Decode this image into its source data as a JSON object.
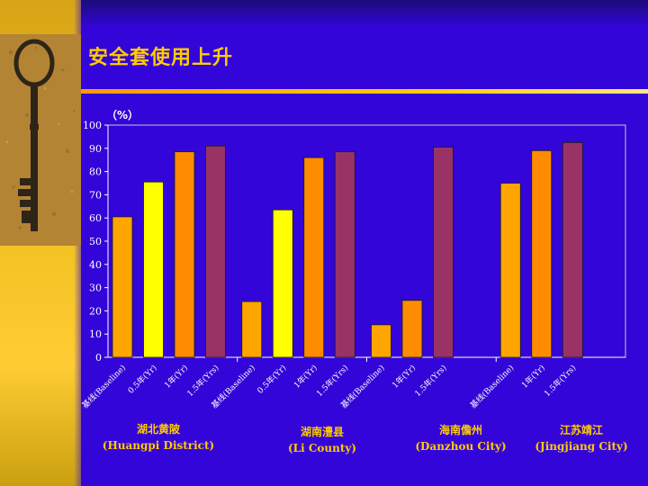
{
  "slide": {
    "title": "安全套使用上升"
  },
  "chart_data": {
    "type": "bar",
    "unit_label": "（%）",
    "ylim": [
      0,
      100
    ],
    "yticks": [
      0,
      10,
      20,
      30,
      40,
      50,
      60,
      70,
      80,
      90,
      100
    ],
    "grid": false,
    "legend": "none",
    "groups": [
      {
        "name_cn": "湖北黄陂",
        "name_en": "(Huangpi District)",
        "bars": [
          {
            "label": "基线(Baseline)",
            "value": 60.5,
            "color": "#ffa500"
          },
          {
            "label": "0.5年(Yr)",
            "value": 75.5,
            "color": "#ffff00"
          },
          {
            "label": "1年(Yr)",
            "value": 88.5,
            "color": "#ff8c00"
          },
          {
            "label": "1.5年(Yrs)",
            "value": 91.0,
            "color": "#993366"
          }
        ]
      },
      {
        "name_cn": "湖南澧县",
        "name_en": "(Li County)",
        "bars": [
          {
            "label": "基线(Baseline)",
            "value": 24.0,
            "color": "#ffa500"
          },
          {
            "label": "0.5年(Yr)",
            "value": 63.5,
            "color": "#ffff00"
          },
          {
            "label": "1年(Yr)",
            "value": 86.0,
            "color": "#ff8c00"
          },
          {
            "label": "1.5年(Yrs)",
            "value": 88.5,
            "color": "#993366"
          }
        ]
      },
      {
        "name_cn": "海南儋州",
        "name_en": "(Danzhou City)",
        "bars": [
          {
            "label": "基线(Baseline)",
            "value": 14.0,
            "color": "#ffa500"
          },
          {
            "label": "1年(Yr)",
            "value": 24.5,
            "color": "#ff8c00"
          },
          {
            "label": "1.5年(Yrs)",
            "value": 90.5,
            "color": "#993366"
          }
        ]
      },
      {
        "name_cn": "江苏靖江",
        "name_en": "(Jingjiang City)",
        "bars": [
          {
            "label": "基线(Baseline)",
            "value": 75.0,
            "color": "#ffa500"
          },
          {
            "label": "1年(Yr)",
            "value": 89.0,
            "color": "#ff8c00"
          },
          {
            "label": "1.5年(Yrs)",
            "value": 92.5,
            "color": "#993366"
          }
        ]
      }
    ]
  }
}
